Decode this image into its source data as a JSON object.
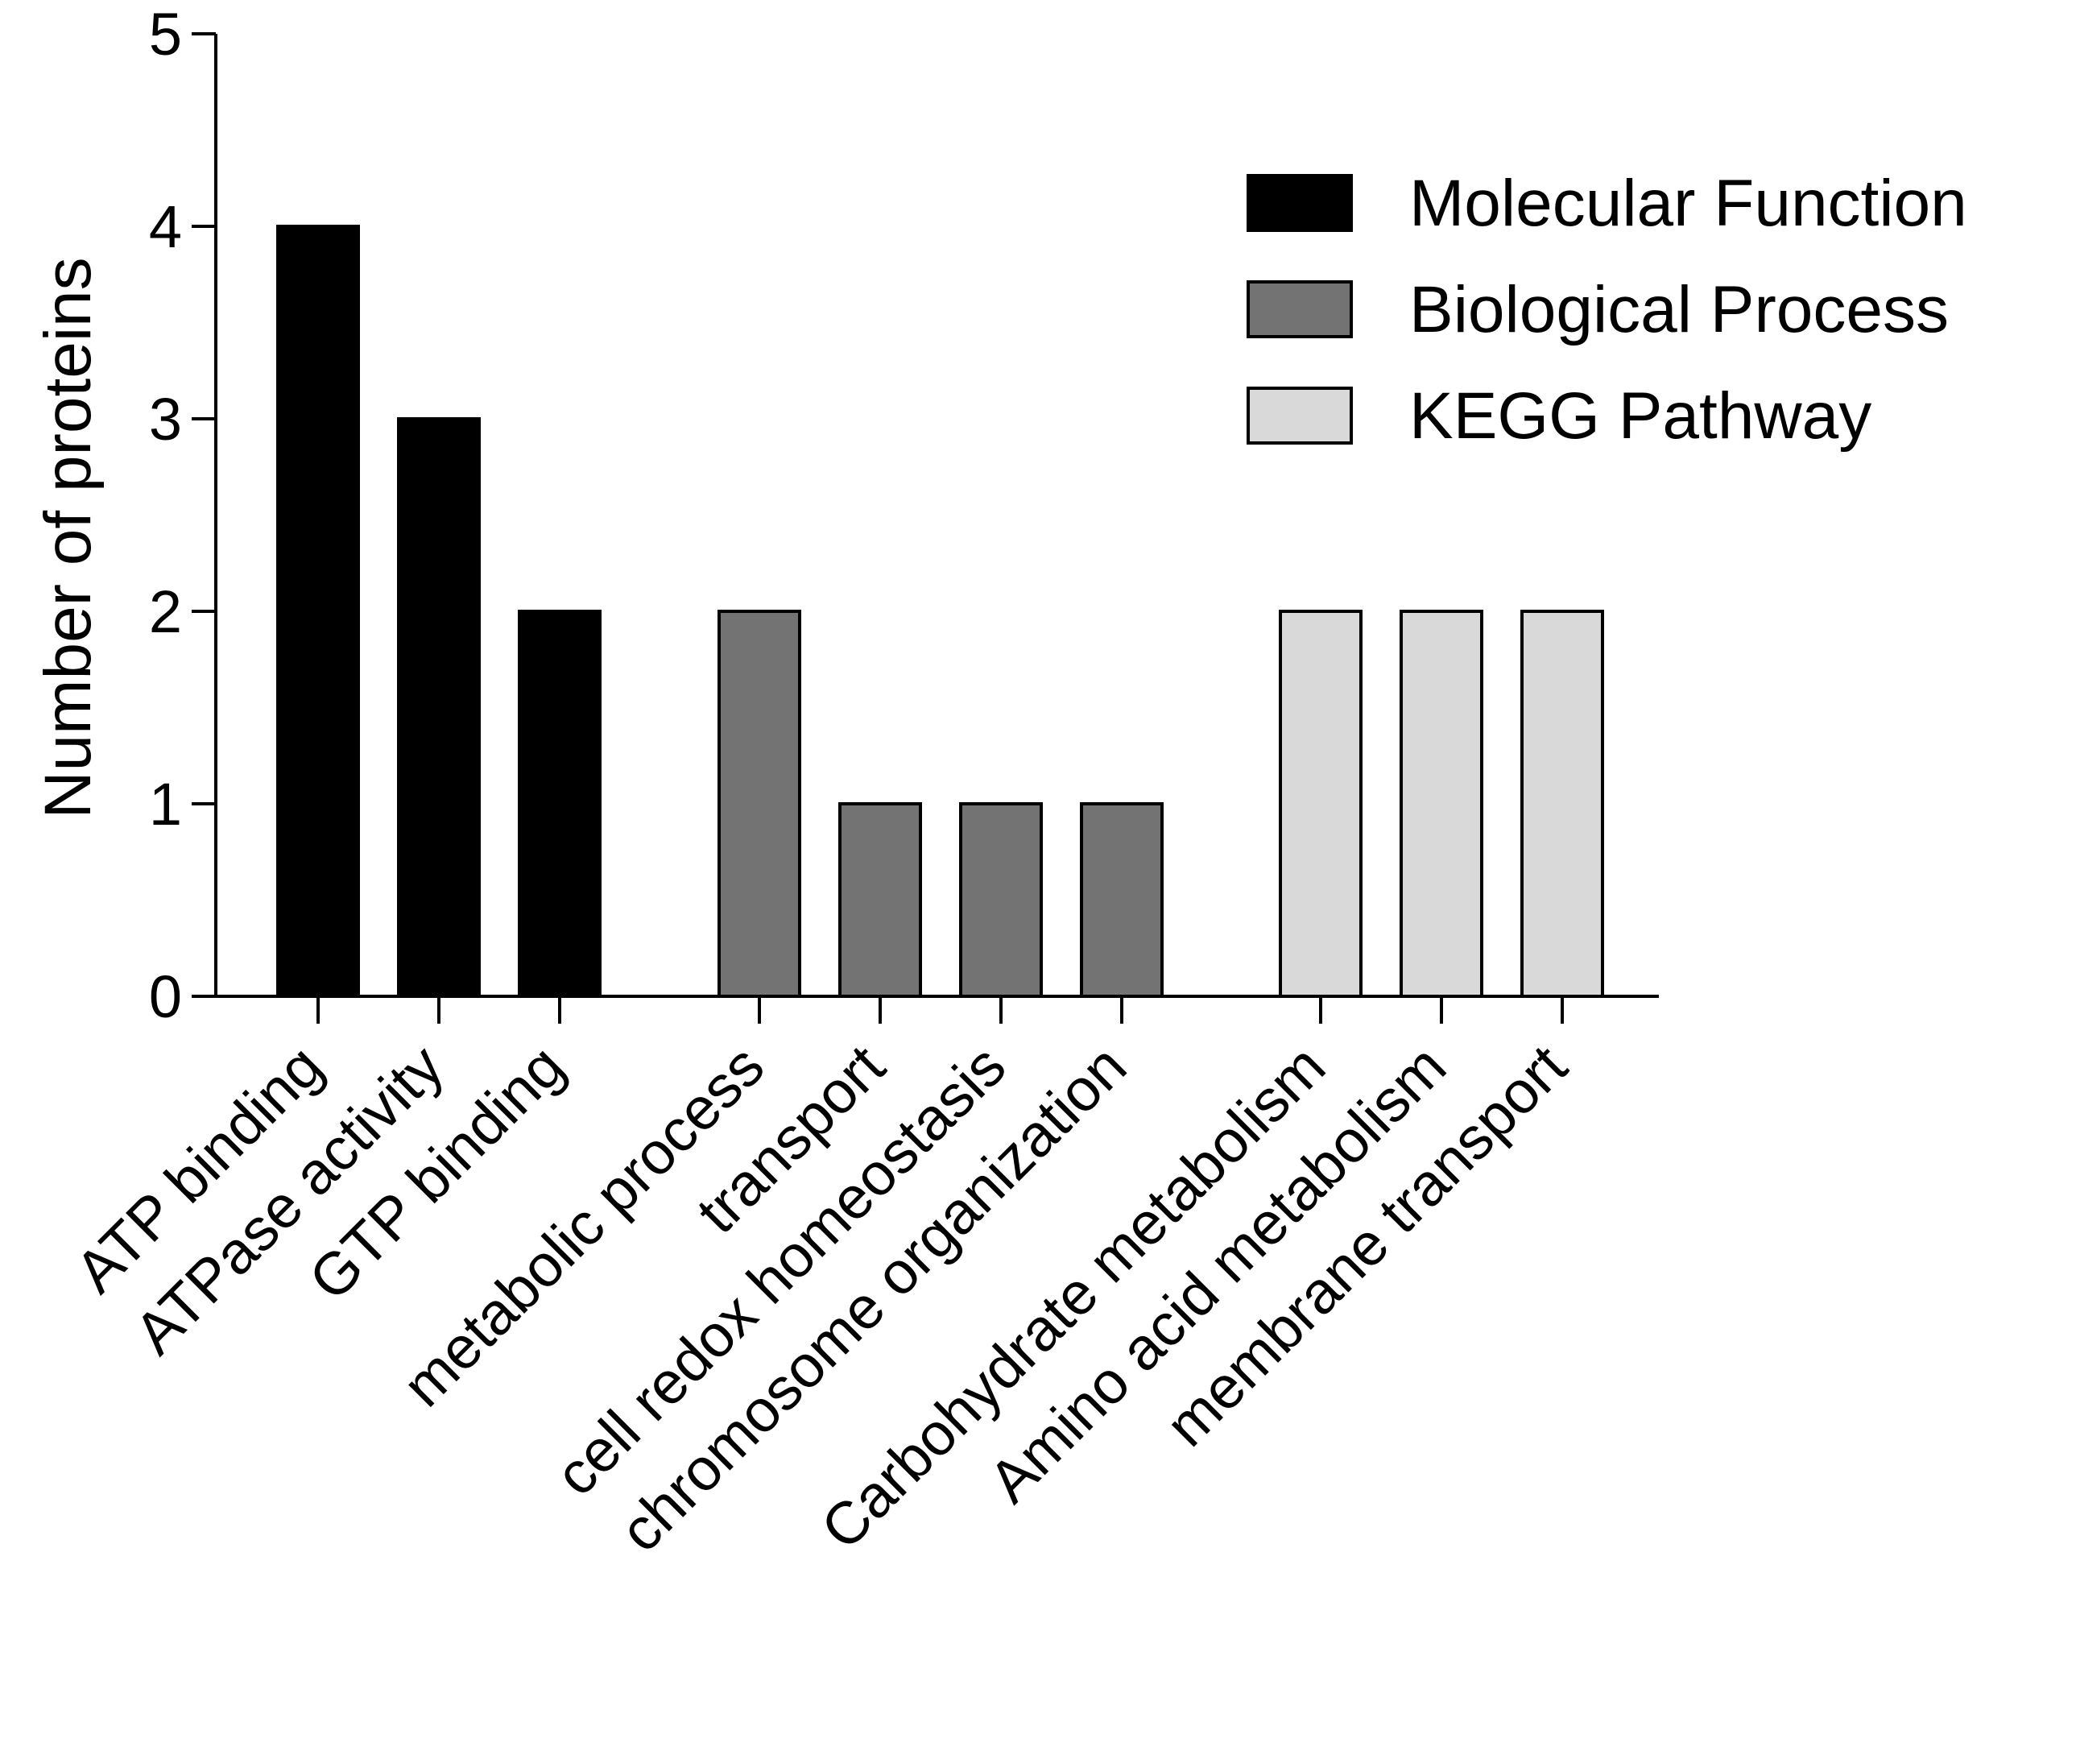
{
  "chart_data": {
    "type": "bar",
    "ylabel": "Number of proteins",
    "xlabel": "",
    "ylim": [
      0,
      5
    ],
    "yticks": [
      "0",
      "1",
      "2",
      "3",
      "4",
      "5"
    ],
    "grid": false,
    "legend_position": "top-right",
    "categories": [
      "ATP binding",
      "ATPase activity",
      "GTP binding",
      "metabolic process",
      "transport",
      "cell redox homeostasis",
      "chromosome organization",
      "Carbohydrate metabolism",
      "Amino acid metabolism",
      "membrane transport"
    ],
    "series": [
      {
        "name": "Molecular Function",
        "color": "#000000",
        "values": [
          4,
          3,
          2,
          null,
          null,
          null,
          null,
          null,
          null,
          null
        ]
      },
      {
        "name": "Biological Process",
        "color": "#737373",
        "values": [
          null,
          null,
          null,
          2,
          1,
          1,
          1,
          null,
          null,
          null
        ]
      },
      {
        "name": "KEGG Pathway",
        "color": "#d9d9d9",
        "values": [
          null,
          null,
          null,
          null,
          null,
          null,
          null,
          2,
          2,
          2
        ]
      }
    ]
  }
}
